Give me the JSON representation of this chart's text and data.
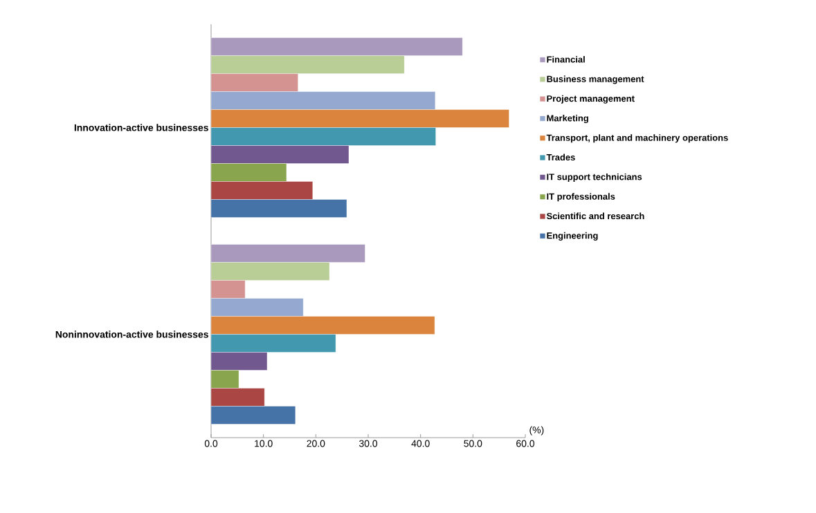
{
  "chart_data": {
    "type": "bar",
    "orientation": "horizontal",
    "xlabel": "(%)",
    "categories": [
      "Innovation-active businesses",
      "Noninnovation-active businesses"
    ],
    "series": [
      {
        "name": "Financial",
        "color": "#a99abd",
        "values": [
          48.0,
          29.4
        ]
      },
      {
        "name": "Business management",
        "color": "#b9cd96",
        "values": [
          36.9,
          22.6
        ]
      },
      {
        "name": "Project management",
        "color": "#d49391",
        "values": [
          16.6,
          6.5
        ]
      },
      {
        "name": "Marketing",
        "color": "#95a9d0",
        "values": [
          42.8,
          17.6
        ]
      },
      {
        "name": "Transport, plant and machinery operations",
        "color": "#db843d",
        "values": [
          56.9,
          42.7
        ]
      },
      {
        "name": "Trades",
        "color": "#4198af",
        "values": [
          42.9,
          23.8
        ]
      },
      {
        "name": "IT support technicians",
        "color": "#71588f",
        "values": [
          26.3,
          10.7
        ]
      },
      {
        "name": "IT professionals",
        "color": "#89a54e",
        "values": [
          14.4,
          5.3
        ]
      },
      {
        "name": "Scientific and research",
        "color": "#aa4643",
        "values": [
          19.4,
          10.2
        ]
      },
      {
        "name": "Engineering",
        "color": "#4572a7",
        "values": [
          25.9,
          16.1
        ]
      }
    ],
    "xlim": [
      0,
      60
    ],
    "xticks": [
      {
        "value": 0,
        "label": "0.0"
      },
      {
        "value": 10,
        "label": "10.0"
      },
      {
        "value": 20,
        "label": "20.0"
      },
      {
        "value": 30,
        "label": "30.0"
      },
      {
        "value": 40,
        "label": "40.0"
      },
      {
        "value": 50,
        "label": "50.0"
      },
      {
        "value": 60,
        "label": "60.0"
      }
    ],
    "legend": "right",
    "grid": false
  }
}
